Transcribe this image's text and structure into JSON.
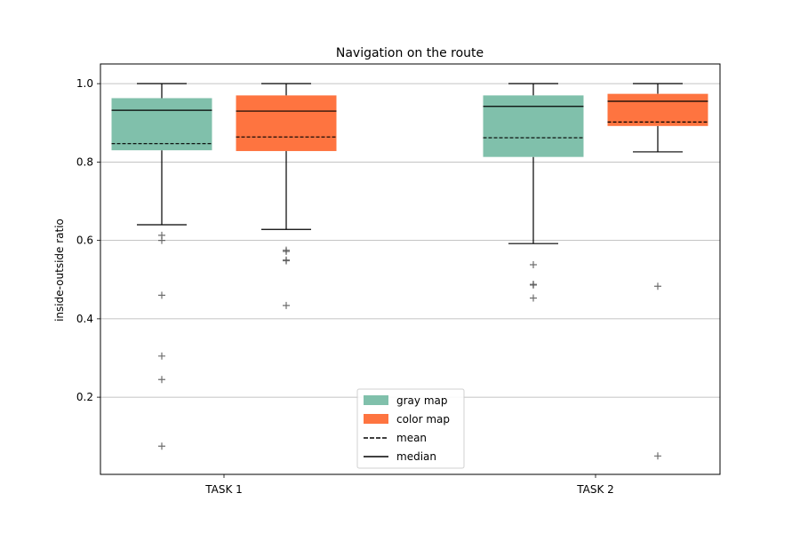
{
  "chart_data": {
    "type": "box",
    "title": "Navigation on the route",
    "xlabel": "",
    "ylabel": "inside-outside ratio",
    "ylim": [
      0.0,
      1.05
    ],
    "yticks": [
      0.2,
      0.4,
      0.6,
      0.8,
      1.0
    ],
    "ytick_labels": [
      "0.2",
      "0.4",
      "0.6",
      "0.8",
      "1.0"
    ],
    "grid": "horizontal",
    "categories": [
      "TASK 1",
      "TASK 2"
    ],
    "legend_position": "lower-center",
    "series": [
      {
        "name": "gray map",
        "color": "#80c0ab",
        "boxes": [
          {
            "q1": 0.83,
            "q3": 0.963,
            "median": 0.932,
            "mean": 0.847,
            "whisker_low": 0.64,
            "whisker_high": 1.0,
            "outliers": [
              0.613,
              0.6,
              0.46,
              0.305,
              0.245,
              0.075
            ]
          },
          {
            "q1": 0.813,
            "q3": 0.97,
            "median": 0.942,
            "mean": 0.862,
            "whisker_low": 0.592,
            "whisker_high": 1.0,
            "outliers": [
              0.538,
              0.488,
              0.486,
              0.453
            ]
          }
        ]
      },
      {
        "name": "color map",
        "color": "#fe7440",
        "boxes": [
          {
            "q1": 0.828,
            "q3": 0.97,
            "median": 0.93,
            "mean": 0.864,
            "whisker_low": 0.628,
            "whisker_high": 1.0,
            "outliers": [
              0.575,
              0.572,
              0.55,
              0.548,
              0.434
            ]
          },
          {
            "q1": 0.892,
            "q3": 0.974,
            "median": 0.955,
            "mean": 0.902,
            "whisker_low": 0.826,
            "whisker_high": 1.0,
            "outliers": [
              0.483,
              0.05
            ]
          }
        ]
      }
    ],
    "legend": [
      {
        "label": "gray map",
        "kind": "patch",
        "color": "#80c0ab"
      },
      {
        "label": "color map",
        "kind": "patch",
        "color": "#fe7440"
      },
      {
        "label": "mean",
        "kind": "dashed-line",
        "color": "#000000"
      },
      {
        "label": "median",
        "kind": "solid-line",
        "color": "#000000"
      }
    ]
  }
}
